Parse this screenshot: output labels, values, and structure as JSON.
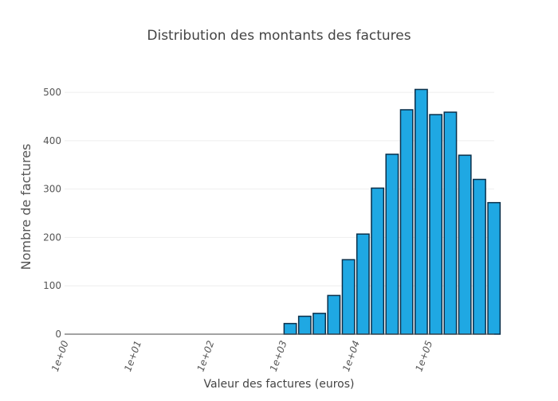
{
  "chart_data": {
    "type": "bar",
    "title": "Distribution des montants des factures",
    "xlabel": "Valeur des factures (euros)",
    "ylabel": "Nombre de factures",
    "x_scale": "log",
    "xlim": [
      1,
      800000
    ],
    "ylim": [
      0,
      510
    ],
    "x_ticks": [
      {
        "value": 1,
        "label": "1e+00"
      },
      {
        "value": 10,
        "label": "1e+01"
      },
      {
        "value": 100,
        "label": "1e+02"
      },
      {
        "value": 1000,
        "label": "1e+03"
      },
      {
        "value": 10000,
        "label": "1e+04"
      },
      {
        "value": 100000,
        "label": "1e+05"
      }
    ],
    "y_ticks": [
      0,
      100,
      200,
      300,
      400,
      500
    ],
    "grid": true,
    "legend": false,
    "bars": [
      {
        "x_start": 1000,
        "x_end": 1585,
        "value": 22
      },
      {
        "x_start": 1585,
        "x_end": 2512,
        "value": 37
      },
      {
        "x_start": 2512,
        "x_end": 3981,
        "value": 43
      },
      {
        "x_start": 3981,
        "x_end": 6310,
        "value": 80
      },
      {
        "x_start": 6310,
        "x_end": 10000,
        "value": 154
      },
      {
        "x_start": 10000,
        "x_end": 15849,
        "value": 207
      },
      {
        "x_start": 15849,
        "x_end": 25119,
        "value": 302
      },
      {
        "x_start": 25119,
        "x_end": 39811,
        "value": 372
      },
      {
        "x_start": 39811,
        "x_end": 63096,
        "value": 464
      },
      {
        "x_start": 63096,
        "x_end": 100000,
        "value": 506
      },
      {
        "x_start": 100000,
        "x_end": 158489,
        "value": 454
      },
      {
        "x_start": 158489,
        "x_end": 251189,
        "value": 459
      },
      {
        "x_start": 251189,
        "x_end": 398107,
        "value": 370
      },
      {
        "x_start": 398107,
        "x_end": 630957,
        "value": 320
      },
      {
        "x_start": 630957,
        "x_end": 1000000,
        "value": 272
      }
    ],
    "colors": {
      "bar_fill": "#1fa8e3",
      "bar_stroke": "#0a2f4a",
      "grid": "#eeeeee",
      "zero_line": "#444444",
      "text": "#444444"
    }
  }
}
